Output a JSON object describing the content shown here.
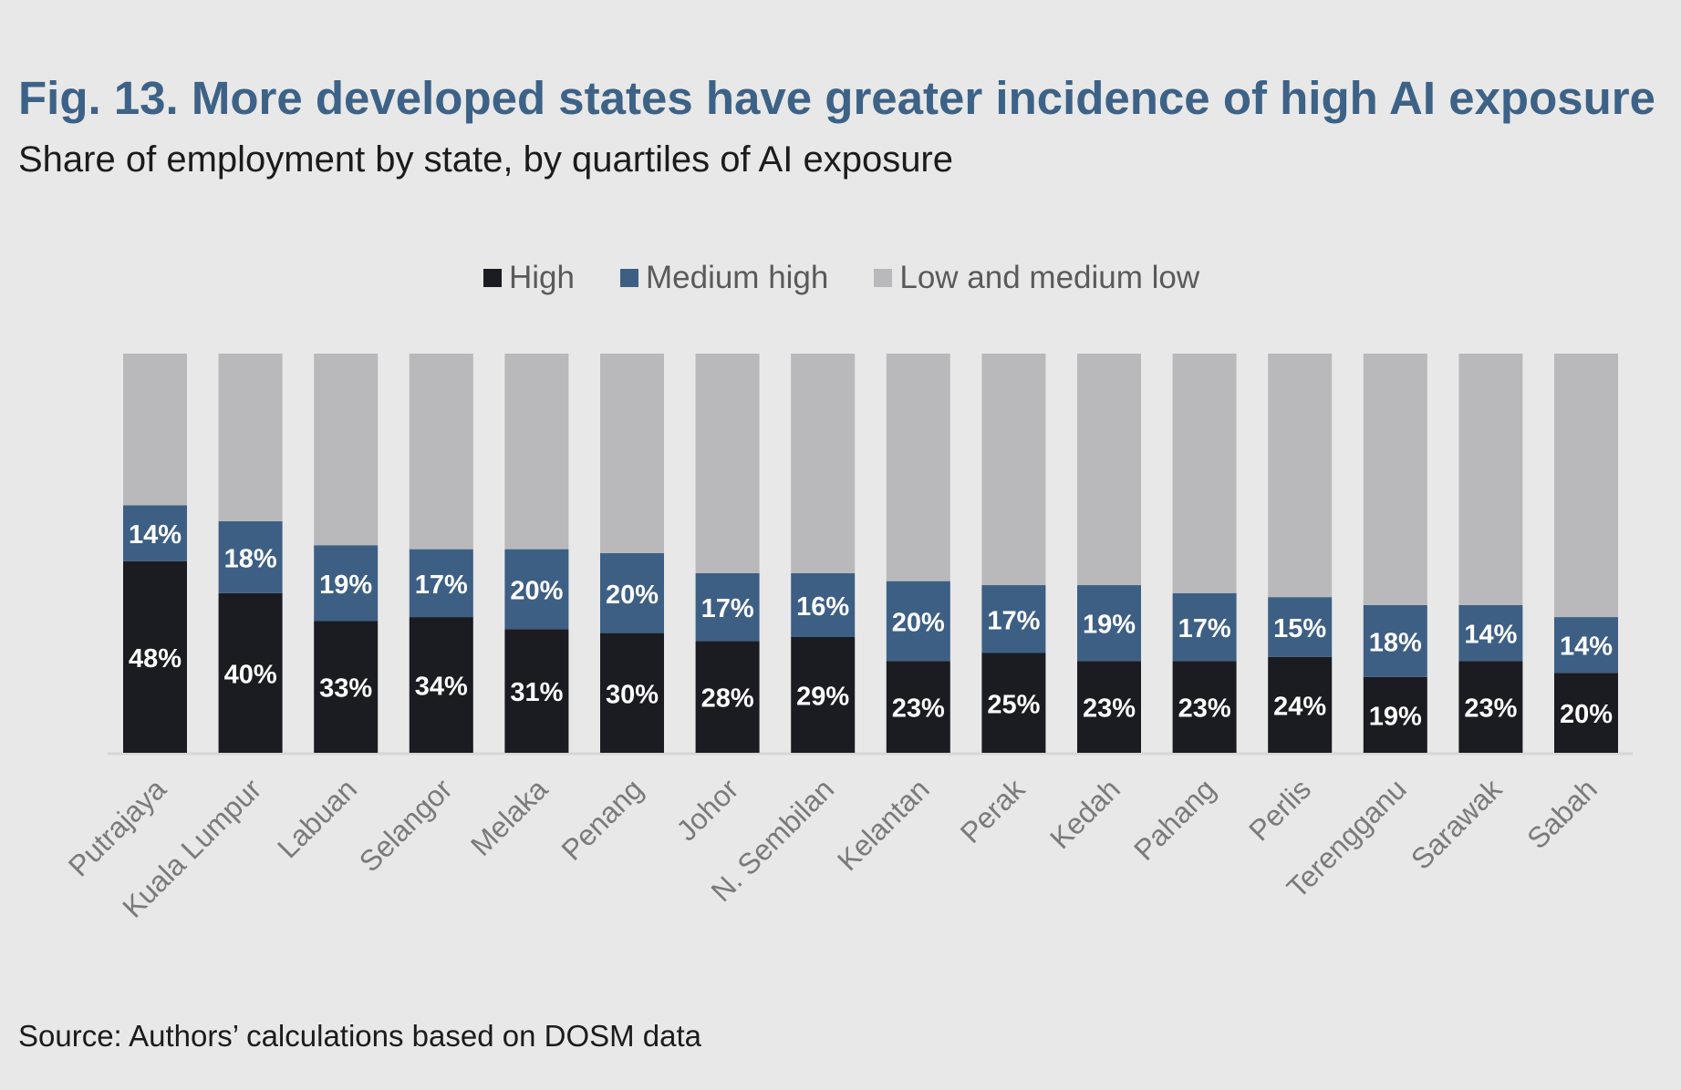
{
  "title": "Fig. 13. More developed states have greater incidence of high AI exposure",
  "subtitle": "Share of employment by state, by quartiles of AI exposure",
  "source": "Source: Authors’ calculations based on DOSM data",
  "colors": {
    "High": "#1b1b22",
    "Medium high": "#3d5f84",
    "Low and medium low": "#b9b9bb",
    "label_text": "#ffffff",
    "axis_label": "#7a7a7a",
    "baseline": "#d6d6d6"
  },
  "chart_data": {
    "type": "bar",
    "stacked": true,
    "title": "Fig. 13. More developed states have greater incidence of high AI exposure",
    "subtitle": "Share of employment by state, by quartiles of AI exposure",
    "ylim": [
      0,
      100
    ],
    "grid": false,
    "legend_position": "top-center",
    "categories": [
      "Putrajaya",
      "Kuala Lumpur",
      "Labuan",
      "Selangor",
      "Melaka",
      "Penang",
      "Johor",
      "N. Sembilan",
      "Kelantan",
      "Perak",
      "Kedah",
      "Pahang",
      "Perlis",
      "Terengganu",
      "Sarawak",
      "Sabah"
    ],
    "series": [
      {
        "name": "High",
        "values": [
          48,
          40,
          33,
          34,
          31,
          30,
          28,
          29,
          23,
          25,
          23,
          23,
          24,
          19,
          23,
          20
        ],
        "labels": [
          "48%",
          "40%",
          "33%",
          "34%",
          "31%",
          "30%",
          "28%",
          "29%",
          "23%",
          "25%",
          "23%",
          "23%",
          "24%",
          "19%",
          "23%",
          "20%"
        ]
      },
      {
        "name": "Medium high",
        "values": [
          14,
          18,
          19,
          17,
          20,
          20,
          17,
          16,
          20,
          17,
          19,
          17,
          15,
          18,
          14,
          14
        ],
        "labels": [
          "14%",
          "18%",
          "19%",
          "17%",
          "20%",
          "20%",
          "17%",
          "16%",
          "20%",
          "17%",
          "19%",
          "17%",
          "15%",
          "18%",
          "14%",
          "14%"
        ]
      },
      {
        "name": "Low and medium low",
        "values": [
          38,
          42,
          48,
          49,
          49,
          50,
          55,
          55,
          57,
          58,
          58,
          60,
          61,
          63,
          63,
          66
        ]
      }
    ]
  }
}
